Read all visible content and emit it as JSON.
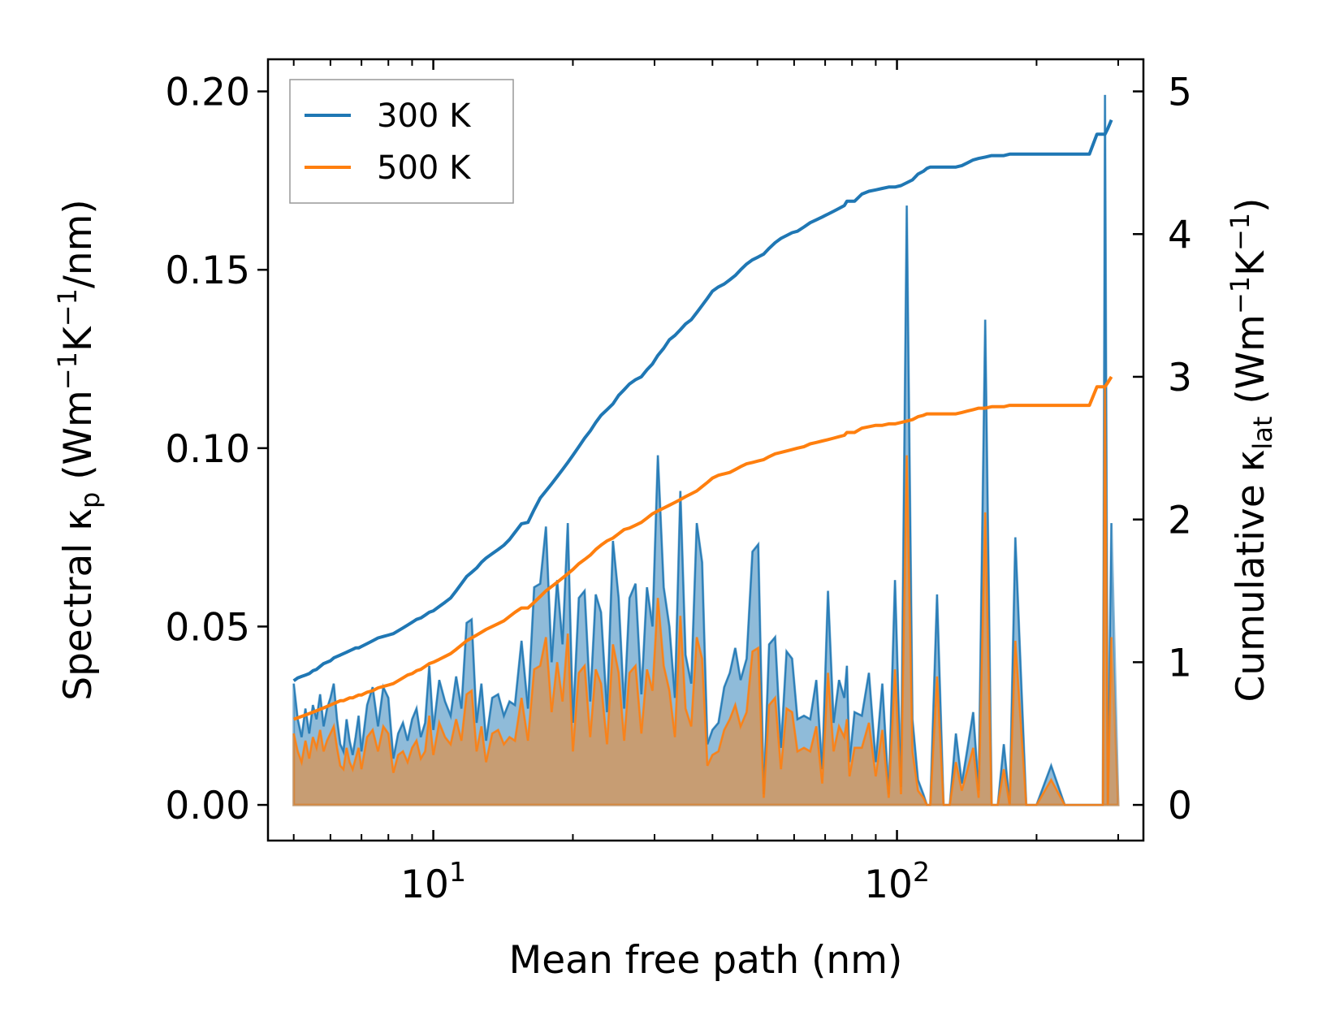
{
  "chart_data": {
    "type": "line",
    "xlabel": "Mean free path (nm)",
    "xscale": "log",
    "xlim": [
      4.4,
      340
    ],
    "x_ticks": [
      {
        "value": 10,
        "base": "10",
        "exp": "1"
      },
      {
        "value": 100,
        "base": "10",
        "exp": "2"
      }
    ],
    "ylabel_left": {
      "pre": "Spectral κ",
      "sub": "p",
      "mid": " (Wm",
      "sup1": "−1",
      "k": "K",
      "sup2": "−1",
      "post": "/nm)"
    },
    "ylabel_right": {
      "pre": "Cumulative κ",
      "sub": "lat",
      "mid": " (Wm",
      "sup1": "−1",
      "k": "K",
      "sup2": "−1",
      "post": ")"
    },
    "ylim_left": [
      -0.01,
      0.209
    ],
    "ylim_right": [
      -0.25,
      5.225
    ],
    "yticks_left": [
      "0.00",
      "0.05",
      "0.10",
      "0.15",
      "0.20"
    ],
    "yticks_right": [
      "0",
      "1",
      "2",
      "3",
      "4",
      "5"
    ],
    "legend": {
      "position": "upper-left",
      "entries": [
        "300 K",
        "500 K"
      ]
    },
    "colors": {
      "300 K": "#1f77b4",
      "500 K": "#ff7f0e"
    },
    "x": [
      5.0,
      5.1,
      5.2,
      5.3,
      5.4,
      5.5,
      5.6,
      5.7,
      5.8,
      5.9,
      6.0,
      6.1,
      6.2,
      6.3,
      6.4,
      6.5,
      6.6,
      6.7,
      6.8,
      6.9,
      7.0,
      7.2,
      7.4,
      7.6,
      7.8,
      8.0,
      8.2,
      8.4,
      8.6,
      8.8,
      9.0,
      9.2,
      9.4,
      9.6,
      9.8,
      10.0,
      10.3,
      10.6,
      10.9,
      11.2,
      11.5,
      11.8,
      12.1,
      12.4,
      12.7,
      13.0,
      13.4,
      13.8,
      14.2,
      14.6,
      15.0,
      15.5,
      16.0,
      16.5,
      17.0,
      17.5,
      18.0,
      18.5,
      19.0,
      19.5,
      20.0,
      20.6,
      21.2,
      21.8,
      22.4,
      23.0,
      23.7,
      24.4,
      25.1,
      25.8,
      26.5,
      27.3,
      28.1,
      28.9,
      29.7,
      30.5,
      31.4,
      32.3,
      33.2,
      34.1,
      35.0,
      36.0,
      37.0,
      38.0,
      39.0,
      40.0,
      41.2,
      42.4,
      43.6,
      44.8,
      46.0,
      47.4,
      48.8,
      50.2,
      51.6,
      53.0,
      54.6,
      56.2,
      57.8,
      59.4,
      61.0,
      63.0,
      65.0,
      67.0,
      69.0,
      71.0,
      73.0,
      75.0,
      77.0,
      78.0,
      79.0,
      81.0,
      84.0,
      87.0,
      90.0,
      93.0,
      96.0,
      99.0,
      102.0,
      105.0,
      108.0,
      111.0,
      114.0,
      116.0,
      118.0,
      122.0,
      126.0,
      130.0,
      134.0,
      138.0,
      142.0,
      146.0,
      150.0,
      155.0,
      160.0,
      165.0,
      170.0,
      175.0,
      180.0,
      190.0,
      200.0,
      215.0,
      230.0,
      245.0,
      260.0,
      270.0,
      275.0,
      278.0,
      281.0,
      285.0,
      290.0,
      295.0,
      300.0
    ],
    "series": [
      {
        "name": "300 K",
        "spectral": [
          0.034,
          0.024,
          0.019,
          0.027,
          0.02,
          0.028,
          0.024,
          0.031,
          0.022,
          0.027,
          0.03,
          0.034,
          0.024,
          0.017,
          0.015,
          0.024,
          0.018,
          0.014,
          0.019,
          0.025,
          0.015,
          0.028,
          0.033,
          0.022,
          0.033,
          0.03,
          0.013,
          0.02,
          0.023,
          0.018,
          0.024,
          0.027,
          0.019,
          0.023,
          0.039,
          0.021,
          0.035,
          0.029,
          0.025,
          0.036,
          0.027,
          0.051,
          0.052,
          0.023,
          0.034,
          0.018,
          0.03,
          0.031,
          0.025,
          0.029,
          0.028,
          0.046,
          0.027,
          0.061,
          0.062,
          0.078,
          0.04,
          0.063,
          0.045,
          0.079,
          0.023,
          0.058,
          0.06,
          0.029,
          0.059,
          0.054,
          0.026,
          0.074,
          0.058,
          0.027,
          0.058,
          0.062,
          0.031,
          0.061,
          0.05,
          0.098,
          0.061,
          0.05,
          0.03,
          0.088,
          0.042,
          0.034,
          0.079,
          0.068,
          0.017,
          0.021,
          0.023,
          0.033,
          0.037,
          0.044,
          0.035,
          0.041,
          0.071,
          0.073,
          0.003,
          0.045,
          0.047,
          0.016,
          0.043,
          0.041,
          0.024,
          0.025,
          0.024,
          0.035,
          0.01,
          0.06,
          0.023,
          0.035,
          0.03,
          0.039,
          0.012,
          0.026,
          0.025,
          0.037,
          0.012,
          0.034,
          0.003,
          0.063,
          0.005,
          0.168,
          0.024,
          0.007,
          0.003,
          0.0,
          0.0,
          0.059,
          0.0,
          0.0,
          0.02,
          0.006,
          0.016,
          0.026,
          0.004,
          0.136,
          0.0,
          0.0,
          0.017,
          0.0,
          0.075,
          0.0,
          0.0,
          0.011,
          0.0,
          0.0,
          0.0,
          0.0,
          0.0,
          0.0,
          0.199,
          0.0,
          0.079
        ],
        "cumulative": [
          0.87,
          0.89,
          0.9,
          0.91,
          0.92,
          0.94,
          0.95,
          0.97,
          0.99,
          1.0,
          1.01,
          1.03,
          1.04,
          1.05,
          1.06,
          1.07,
          1.08,
          1.09,
          1.1,
          1.1,
          1.11,
          1.13,
          1.15,
          1.17,
          1.18,
          1.19,
          1.2,
          1.22,
          1.24,
          1.26,
          1.28,
          1.3,
          1.31,
          1.33,
          1.35,
          1.36,
          1.39,
          1.42,
          1.45,
          1.5,
          1.55,
          1.6,
          1.63,
          1.66,
          1.7,
          1.73,
          1.76,
          1.79,
          1.82,
          1.86,
          1.91,
          1.97,
          1.98,
          2.07,
          2.15,
          2.2,
          2.25,
          2.3,
          2.35,
          2.4,
          2.45,
          2.51,
          2.57,
          2.62,
          2.68,
          2.73,
          2.77,
          2.81,
          2.87,
          2.91,
          2.95,
          2.98,
          3.0,
          3.05,
          3.09,
          3.15,
          3.2,
          3.26,
          3.29,
          3.33,
          3.37,
          3.4,
          3.45,
          3.5,
          3.55,
          3.6,
          3.63,
          3.65,
          3.68,
          3.71,
          3.75,
          3.79,
          3.82,
          3.84,
          3.86,
          3.9,
          3.94,
          3.97,
          3.99,
          4.01,
          4.02,
          4.05,
          4.08,
          4.1,
          4.12,
          4.14,
          4.16,
          4.18,
          4.2,
          4.23,
          4.23,
          4.23,
          4.28,
          4.3,
          4.31,
          4.32,
          4.33,
          4.33,
          4.34,
          4.36,
          4.38,
          4.42,
          4.44,
          4.46,
          4.47,
          4.47,
          4.47,
          4.47,
          4.47,
          4.48,
          4.5,
          4.52,
          4.53,
          4.54,
          4.55,
          4.55,
          4.55,
          4.56,
          4.56,
          4.56,
          4.56,
          4.56,
          4.56,
          4.56,
          4.56,
          4.7,
          4.7,
          4.7,
          4.7,
          4.74,
          4.8
        ]
      },
      {
        "name": "500 K",
        "spectral": [
          0.02,
          0.015,
          0.012,
          0.018,
          0.013,
          0.019,
          0.016,
          0.021,
          0.015,
          0.018,
          0.02,
          0.022,
          0.016,
          0.011,
          0.01,
          0.016,
          0.012,
          0.01,
          0.013,
          0.016,
          0.01,
          0.019,
          0.021,
          0.015,
          0.022,
          0.02,
          0.009,
          0.014,
          0.015,
          0.012,
          0.016,
          0.018,
          0.013,
          0.015,
          0.025,
          0.014,
          0.023,
          0.019,
          0.017,
          0.024,
          0.018,
          0.031,
          0.032,
          0.015,
          0.022,
          0.012,
          0.02,
          0.021,
          0.017,
          0.019,
          0.018,
          0.03,
          0.018,
          0.038,
          0.039,
          0.047,
          0.026,
          0.04,
          0.029,
          0.048,
          0.015,
          0.037,
          0.039,
          0.019,
          0.038,
          0.034,
          0.017,
          0.045,
          0.037,
          0.018,
          0.037,
          0.039,
          0.02,
          0.038,
          0.032,
          0.058,
          0.039,
          0.032,
          0.019,
          0.053,
          0.027,
          0.022,
          0.047,
          0.041,
          0.011,
          0.014,
          0.015,
          0.021,
          0.024,
          0.028,
          0.022,
          0.026,
          0.043,
          0.044,
          0.002,
          0.028,
          0.03,
          0.01,
          0.027,
          0.026,
          0.015,
          0.016,
          0.015,
          0.022,
          0.006,
          0.037,
          0.015,
          0.022,
          0.019,
          0.024,
          0.008,
          0.016,
          0.016,
          0.023,
          0.008,
          0.021,
          0.002,
          0.038,
          0.003,
          0.098,
          0.015,
          0.004,
          0.002,
          0.0,
          0.0,
          0.036,
          0.0,
          0.0,
          0.012,
          0.004,
          0.01,
          0.016,
          0.002,
          0.082,
          0.0,
          0.0,
          0.01,
          0.0,
          0.046,
          0.0,
          0.0,
          0.007,
          0.0,
          0.0,
          0.0,
          0.0,
          0.0,
          0.0,
          0.117,
          0.0,
          0.047
        ],
        "cumulative": [
          0.6,
          0.61,
          0.62,
          0.63,
          0.64,
          0.65,
          0.66,
          0.67,
          0.68,
          0.69,
          0.7,
          0.71,
          0.72,
          0.73,
          0.73,
          0.74,
          0.75,
          0.75,
          0.76,
          0.77,
          0.77,
          0.79,
          0.8,
          0.82,
          0.83,
          0.84,
          0.85,
          0.87,
          0.89,
          0.91,
          0.92,
          0.94,
          0.95,
          0.97,
          0.99,
          1.0,
          1.02,
          1.04,
          1.06,
          1.09,
          1.12,
          1.15,
          1.17,
          1.19,
          1.21,
          1.23,
          1.25,
          1.27,
          1.29,
          1.32,
          1.35,
          1.38,
          1.38,
          1.42,
          1.46,
          1.5,
          1.53,
          1.56,
          1.59,
          1.62,
          1.65,
          1.69,
          1.72,
          1.75,
          1.79,
          1.82,
          1.85,
          1.87,
          1.9,
          1.93,
          1.94,
          1.96,
          1.98,
          2.01,
          2.04,
          2.06,
          2.08,
          2.1,
          2.12,
          2.14,
          2.16,
          2.18,
          2.2,
          2.23,
          2.26,
          2.29,
          2.31,
          2.32,
          2.33,
          2.35,
          2.37,
          2.39,
          2.4,
          2.41,
          2.42,
          2.44,
          2.46,
          2.47,
          2.48,
          2.49,
          2.5,
          2.51,
          2.53,
          2.54,
          2.55,
          2.56,
          2.57,
          2.58,
          2.59,
          2.61,
          2.61,
          2.61,
          2.64,
          2.65,
          2.66,
          2.66,
          2.67,
          2.67,
          2.68,
          2.69,
          2.7,
          2.72,
          2.73,
          2.74,
          2.74,
          2.74,
          2.74,
          2.74,
          2.74,
          2.75,
          2.76,
          2.77,
          2.78,
          2.78,
          2.79,
          2.79,
          2.79,
          2.8,
          2.8,
          2.8,
          2.8,
          2.8,
          2.8,
          2.8,
          2.8,
          2.93,
          2.93,
          2.93,
          2.93,
          2.96,
          3.0
        ]
      }
    ]
  }
}
